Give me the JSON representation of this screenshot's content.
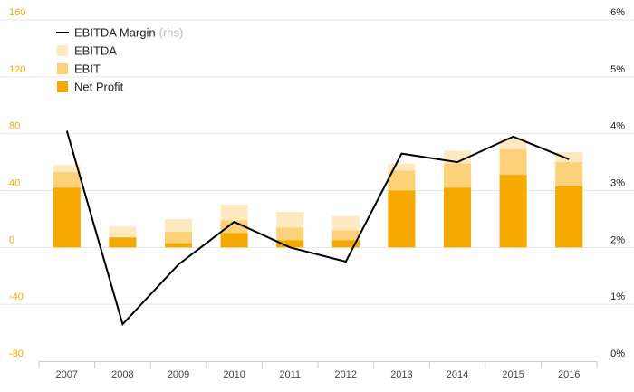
{
  "chart_data": {
    "type": "bar",
    "categories": [
      "2007",
      "2008",
      "2009",
      "2010",
      "2011",
      "2012",
      "2013",
      "2014",
      "2015",
      "2016"
    ],
    "series": [
      {
        "name": "Net Profit",
        "kind": "bar",
        "axis": "left",
        "values": [
          42,
          7,
          3,
          10,
          5,
          5,
          40,
          42,
          51,
          43
        ]
      },
      {
        "name": "EBIT",
        "kind": "bar",
        "axis": "left",
        "values": [
          53,
          7,
          11,
          19,
          14,
          12,
          54,
          59,
          69,
          60
        ]
      },
      {
        "name": "EBITDA",
        "kind": "bar",
        "axis": "left",
        "values": [
          58,
          15,
          20,
          30,
          25,
          22,
          59,
          68,
          77,
          67
        ]
      },
      {
        "name": "EBITDA Margin",
        "name_suffix": "(rhs)",
        "kind": "line",
        "axis": "right",
        "values": [
          4.05,
          0.65,
          1.7,
          2.45,
          2.0,
          1.75,
          3.65,
          3.5,
          3.95,
          3.55
        ]
      }
    ],
    "y_left": {
      "min": -80,
      "max": 160,
      "ticks": [
        "160",
        "120",
        "80",
        "40",
        "0",
        "-40",
        "-80"
      ]
    },
    "y_right": {
      "min": 0,
      "max": 6,
      "ticks": [
        "6%",
        "5%",
        "4%",
        "3%",
        "2%",
        "1%",
        "0%"
      ]
    },
    "legend": [
      {
        "label": "EBITDA Margin",
        "suffix": "(rhs)",
        "symbol": "line"
      },
      {
        "label": "EBITDA",
        "symbol": "box"
      },
      {
        "label": "EBIT",
        "symbol": "box"
      },
      {
        "label": "Net Profit",
        "symbol": "box"
      }
    ],
    "legend_position": "top-left",
    "grid": true,
    "colors": {
      "net_profit": "#f5a800",
      "ebit": "#fdd17a",
      "ebitda": "#fee9c0",
      "margin_line": "#000000",
      "grid": "#e6e6e6",
      "left_tick": "#f5a800"
    }
  }
}
